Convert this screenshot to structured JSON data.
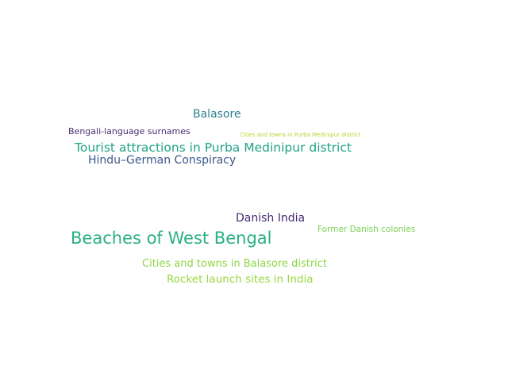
{
  "word_cloud": {
    "words": [
      {
        "text": "Balasore",
        "color": "#2b7f92"
      },
      {
        "text": "Bengali-language surnames",
        "color": "#482d72"
      },
      {
        "text": "Cities and towns in Purba Medinipur district",
        "color": "#b5d62d"
      },
      {
        "text": "Tourist attractions in Purba Medinipur district",
        "color": "#20a386"
      },
      {
        "text": "Hindu–German Conspiracy",
        "color": "#3a578b"
      },
      {
        "text": "Danish India",
        "color": "#472a73"
      },
      {
        "text": "Former Danish colonies",
        "color": "#79d151"
      },
      {
        "text": "Beaches of West Bengal",
        "color": "#2ab07f"
      },
      {
        "text": "Cities and towns in Balasore district",
        "color": "#8ed645"
      },
      {
        "text": "Rocket launch sites in India",
        "color": "#98d83e"
      }
    ]
  }
}
